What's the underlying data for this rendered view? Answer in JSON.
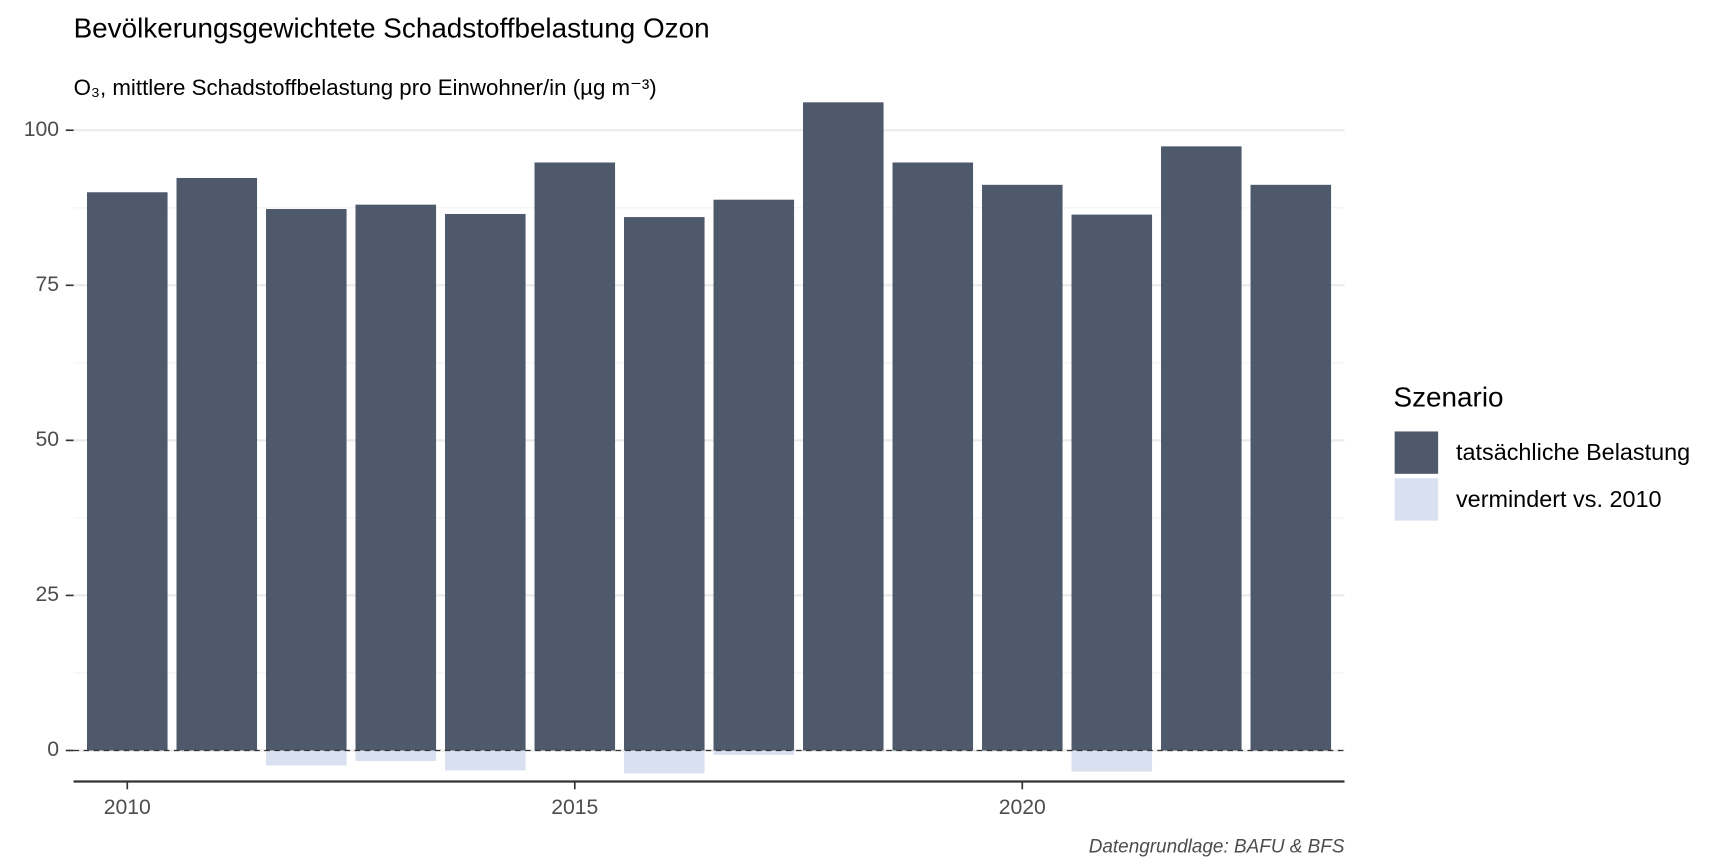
{
  "chart_data": {
    "type": "bar",
    "title": "Bevölkerungsgewichtete Schadstoffbelastung Ozon",
    "subtitle": "O₃, mittlere Schadstoffbelastung pro Einwohner/in (µg m⁻³)",
    "caption": "Datengrundlage: BAFU & BFS",
    "legend_title": "Szenario",
    "x": [
      2010,
      2011,
      2012,
      2013,
      2014,
      2015,
      2016,
      2017,
      2018,
      2019,
      2020,
      2021,
      2022,
      2023
    ],
    "series": [
      {
        "name": "tatsächliche Belastung",
        "color": "#4f596c",
        "values": [
          90,
          92.3,
          87.3,
          88,
          86.5,
          94.8,
          86,
          88.8,
          104.5,
          94.8,
          91.2,
          86.4,
          97.4,
          91.2
        ]
      },
      {
        "name": "vermindert vs. 2010",
        "color": "#d9e0f0",
        "values": [
          0,
          0,
          -2.4,
          -1.7,
          -3.2,
          0,
          -3.7,
          -0.7,
          0,
          0,
          0,
          -3.4,
          0,
          0
        ]
      }
    ],
    "xlim": [
      2009.4,
      2023.6
    ],
    "xticks": [
      2010,
      2015,
      2020
    ],
    "ylim": [
      -5,
      105
    ],
    "yticks": [
      0,
      25,
      50,
      75,
      100
    ],
    "minor_yticks": [
      12.5,
      37.5,
      62.5,
      87.5
    ],
    "hline": 0,
    "grid": true,
    "legend": "right"
  }
}
